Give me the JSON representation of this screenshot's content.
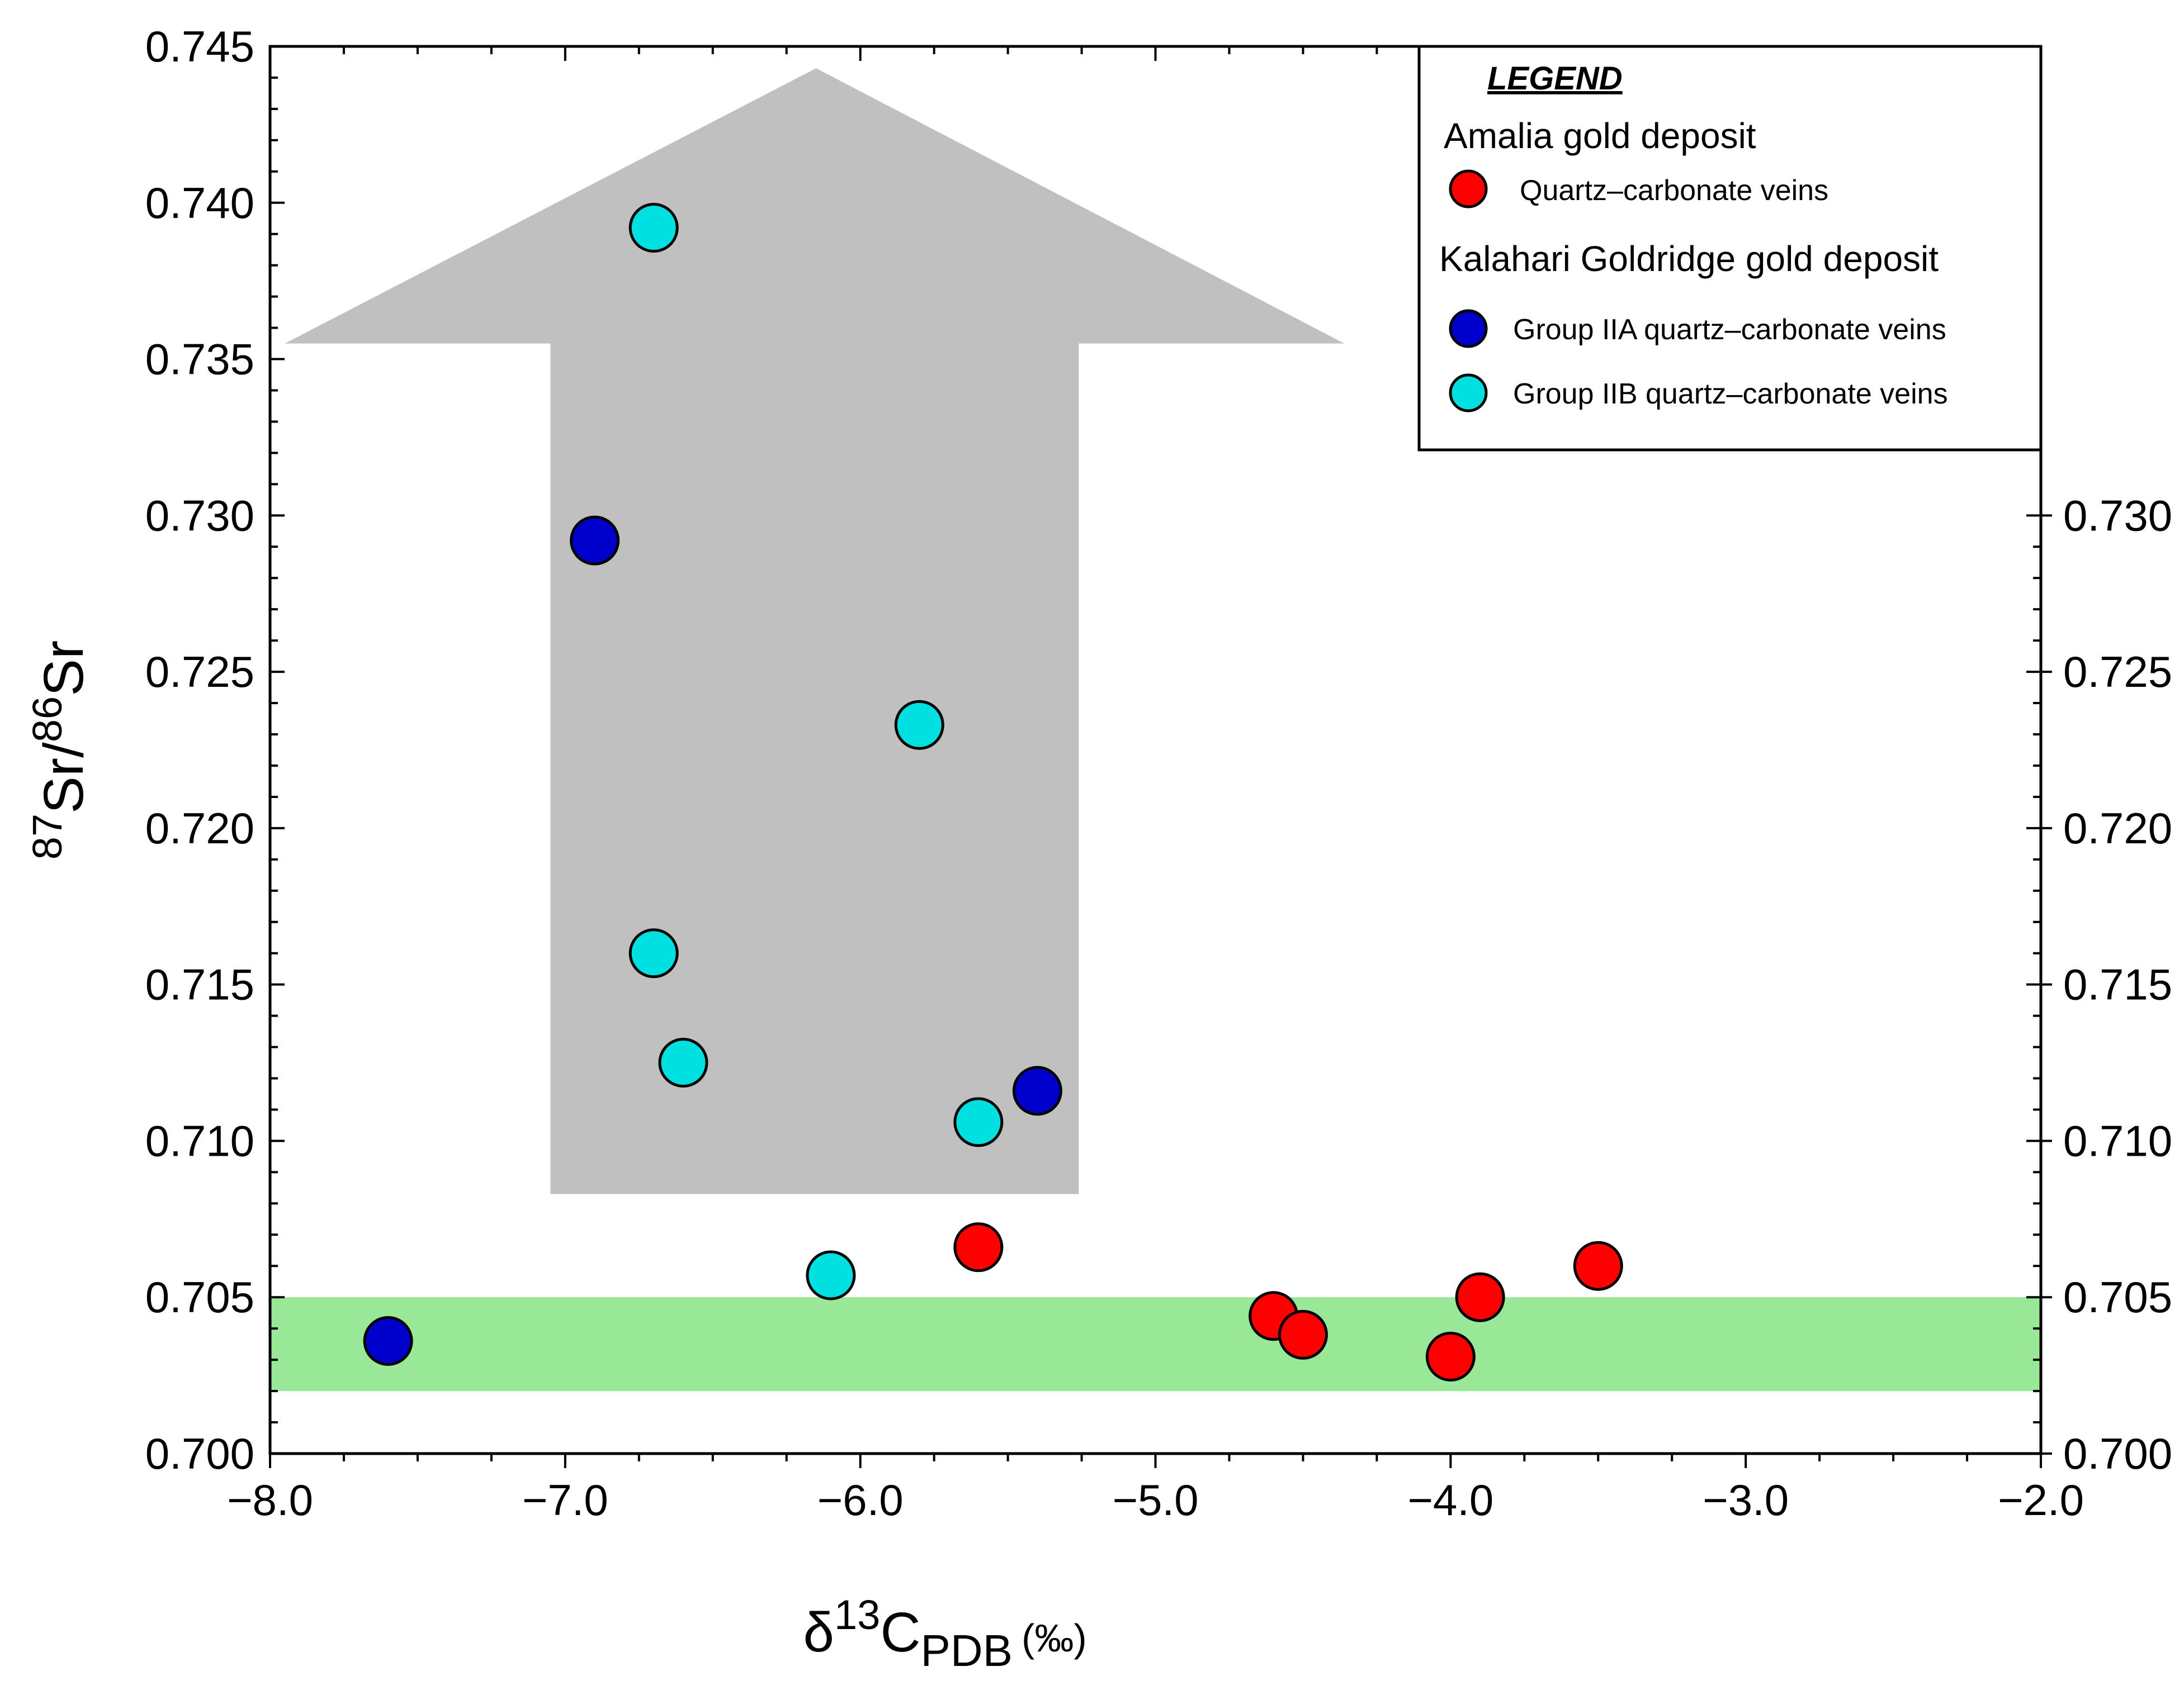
{
  "chart_data": {
    "type": "scatter",
    "xlabel": {
      "prefix": "δ",
      "sup": "13",
      "main": "C",
      "sub": "PDB",
      "unit": "(‰)"
    },
    "ylabel": {
      "sup1": "87",
      "part1": "Sr/",
      "sup2": "86",
      "part2": "Sr"
    },
    "xlim": [
      -8.0,
      -2.0
    ],
    "ylim": [
      0.7,
      0.745
    ],
    "y_right_lim": [
      0.7,
      0.73
    ],
    "x_ticks": [
      -8.0,
      -7.0,
      -6.0,
      -5.0,
      -4.0,
      -3.0,
      -2.0
    ],
    "x_tick_labels": [
      "−8.0",
      "−7.0",
      "−6.0",
      "−5.0",
      "−4.0",
      "−3.0",
      "−2.0"
    ],
    "y_ticks": [
      0.7,
      0.705,
      0.71,
      0.715,
      0.72,
      0.725,
      0.73,
      0.735,
      0.74,
      0.745
    ],
    "y_tick_labels": [
      "0.700",
      "0.705",
      "0.710",
      "0.715",
      "0.720",
      "0.725",
      "0.730",
      "0.735",
      "0.740",
      "0.745"
    ],
    "y_right_ticks": [
      0.7,
      0.705,
      0.71,
      0.715,
      0.72,
      0.725,
      0.73
    ],
    "y_right_tick_labels": [
      "0.700",
      "0.705",
      "0.710",
      "0.715",
      "0.720",
      "0.725",
      "0.730"
    ],
    "green_band": {
      "y_min": 0.702,
      "y_max": 0.705,
      "color": "#98e898"
    },
    "arrow": {
      "color": "#c0c0c0",
      "shaft_x": [
        -7.05,
        -5.26
      ],
      "shaft_y": [
        0.7083,
        0.7355
      ],
      "head_x": [
        -7.95,
        -4.36
      ],
      "head_base_y": 0.7355,
      "tip_x": -6.15,
      "tip_y": 0.7443
    },
    "series": [
      {
        "name": "Quartz–carbonate veins",
        "deposit": "Amalia gold deposit",
        "color": "#ff0000",
        "points": [
          [
            -5.6,
            0.7066
          ],
          [
            -4.6,
            0.7044
          ],
          [
            -4.5,
            0.7038
          ],
          [
            -4.0,
            0.7031
          ],
          [
            -3.9,
            0.705
          ],
          [
            -3.5,
            0.706
          ]
        ]
      },
      {
        "name": "Group IIA quartz–carbonate veins",
        "deposit": "Kalahari Goldridge gold deposit",
        "color": "#0000cc",
        "points": [
          [
            -7.6,
            0.7036
          ],
          [
            -6.9,
            0.7292
          ],
          [
            -5.4,
            0.7116
          ]
        ]
      },
      {
        "name": "Group IIB quartz–carbonate veins",
        "deposit": "Kalahari Goldridge gold deposit",
        "color": "#00e0e0",
        "points": [
          [
            -6.7,
            0.7392
          ],
          [
            -5.8,
            0.7233
          ],
          [
            -6.7,
            0.716
          ],
          [
            -6.6,
            0.7125
          ],
          [
            -5.6,
            0.7106
          ],
          [
            -6.1,
            0.7057
          ]
        ]
      }
    ],
    "legend": {
      "title": "LEGEND",
      "group1": "Amalia gold deposit",
      "group1_item": "Quartz–carbonate veins",
      "group2": "Kalahari Goldridge gold deposit",
      "group2_item1": "Group IIA quartz–carbonate veins",
      "group2_item2": "Group IIB quartz–carbonate veins",
      "placement": "top-right"
    }
  }
}
